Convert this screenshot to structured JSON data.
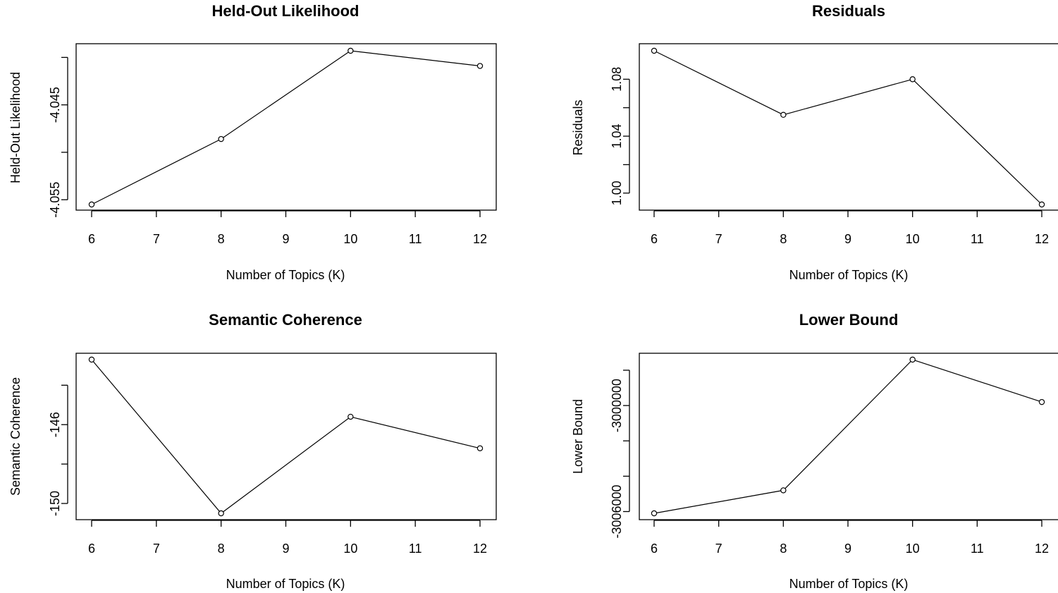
{
  "chart_data": [
    {
      "type": "line",
      "title": "Held-Out Likelihood",
      "xlabel": "Number of Topics (K)",
      "ylabel": "Held-Out Likelihood",
      "x": [
        6,
        8,
        10,
        12
      ],
      "values": [
        -4.0555,
        -4.0486,
        -4.0393,
        -4.0409
      ],
      "xlim": [
        6,
        12
      ],
      "ylim": [
        -4.0555,
        -4.0393
      ],
      "xticks": [
        6,
        7,
        8,
        9,
        10,
        11,
        12
      ],
      "xtick_labels": [
        "6",
        "7",
        "8",
        "9",
        "10",
        "11",
        "12"
      ],
      "yticks": [
        -4.055,
        -4.05,
        -4.045,
        -4.04
      ],
      "ytick_labels": [
        "-4.055",
        "",
        "-4.045",
        ""
      ],
      "markers": "open-circle",
      "grid": false
    },
    {
      "type": "line",
      "title": "Residuals",
      "xlabel": "Number of Topics (K)",
      "ylabel": "Residuals",
      "x": [
        6,
        8,
        10,
        12
      ],
      "values": [
        1.1,
        1.055,
        1.08,
        0.992
      ],
      "xlim": [
        6,
        12
      ],
      "ylim": [
        0.992,
        1.1
      ],
      "xticks": [
        6,
        7,
        8,
        9,
        10,
        11,
        12
      ],
      "xtick_labels": [
        "6",
        "7",
        "8",
        "9",
        "10",
        "11",
        "12"
      ],
      "yticks": [
        1.0,
        1.02,
        1.04,
        1.06,
        1.08
      ],
      "ytick_labels": [
        "1.00",
        "",
        "1.04",
        "",
        "1.08"
      ],
      "markers": "open-circle",
      "grid": false
    },
    {
      "type": "line",
      "title": "Semantic Coherence",
      "xlabel": "Number of Topics (K)",
      "ylabel": "Semantic Coherence",
      "x": [
        6,
        8,
        10,
        12
      ],
      "values": [
        -142.7,
        -150.5,
        -145.6,
        -147.2
      ],
      "xlim": [
        6,
        12
      ],
      "ylim": [
        -150.5,
        -142.7
      ],
      "xticks": [
        6,
        7,
        8,
        9,
        10,
        11,
        12
      ],
      "xtick_labels": [
        "6",
        "7",
        "8",
        "9",
        "10",
        "11",
        "12"
      ],
      "yticks": [
        -150,
        -148,
        -146,
        -144
      ],
      "ytick_labels": [
        "-150",
        "",
        "-146",
        ""
      ],
      "markers": "open-circle",
      "grid": false
    },
    {
      "type": "line",
      "title": "Lower Bound",
      "xlabel": "Number of Topics (K)",
      "ylabel": "Lower Bound",
      "x": [
        6,
        8,
        10,
        12
      ],
      "values": [
        -3006100,
        -3004800,
        -2997400,
        -2999800
      ],
      "xlim": [
        6,
        12
      ],
      "ylim": [
        -3006100,
        -2997400
      ],
      "xticks": [
        6,
        7,
        8,
        9,
        10,
        11,
        12
      ],
      "xtick_labels": [
        "6",
        "7",
        "8",
        "9",
        "10",
        "11",
        "12"
      ],
      "yticks": [
        -3006000,
        -3004000,
        -3002000,
        -3000000,
        -2998000
      ],
      "ytick_labels": [
        "-3006000",
        "",
        "",
        "-3000000",
        ""
      ],
      "markers": "open-circle",
      "grid": false
    }
  ]
}
